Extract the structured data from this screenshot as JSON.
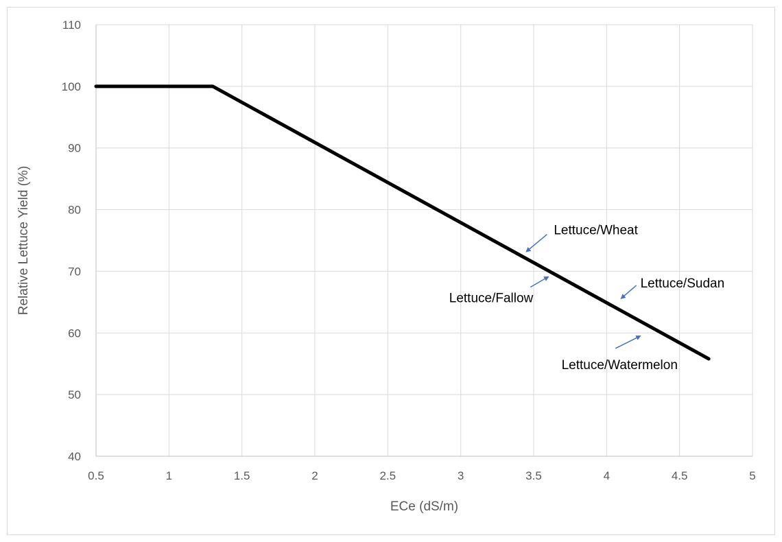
{
  "chart_data": {
    "type": "line",
    "title": "",
    "xlabel": "ECe (dS/m)",
    "ylabel": "Relative Lettuce Yield (%)",
    "xlim": [
      0.5,
      5
    ],
    "ylim": [
      40,
      110
    ],
    "x_ticks": [
      "0.5",
      "1",
      "1.5",
      "2",
      "2.5",
      "3",
      "3.5",
      "4",
      "4.5",
      "5"
    ],
    "y_ticks": [
      "40",
      "50",
      "60",
      "70",
      "80",
      "90",
      "100",
      "110"
    ],
    "grid": true,
    "legend": "none",
    "line_color": "#000000",
    "arrow_color": "#4472c4",
    "series": [
      {
        "x": [
          0.5,
          1.3,
          4.7
        ],
        "y": [
          100,
          100,
          55.8
        ]
      }
    ],
    "annotations": [
      {
        "text": "Lettuce/Wheat",
        "x": 3.45,
        "y": 73.2
      },
      {
        "text": "Lettuce/Fallow",
        "x": 3.6,
        "y": 69.1
      },
      {
        "text": "Lettuce/Sudan",
        "x": 4.1,
        "y": 65.6
      },
      {
        "text": "Lettuce/Watermelon",
        "x": 4.23,
        "y": 59.5
      }
    ]
  }
}
